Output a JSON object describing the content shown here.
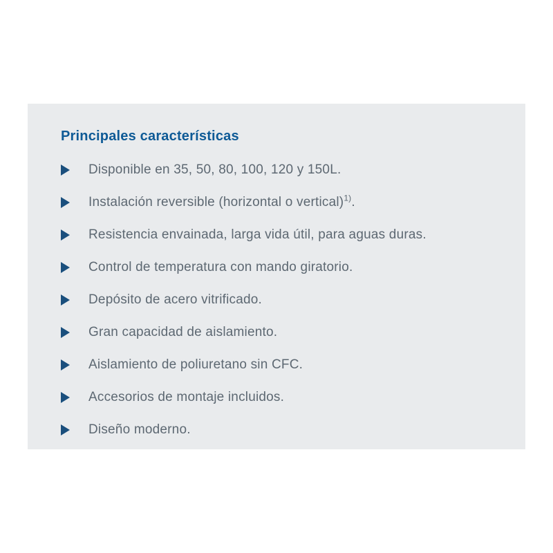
{
  "panel": {
    "title": "Principales características",
    "colors": {
      "panel_background": "#e9ebed",
      "title_blue": "#0e5a96",
      "bullet_blue": "#1a4f7d",
      "body_text_gray": "#5d6872",
      "page_background": "#ffffff"
    },
    "bullet_icon": "triangle-right-icon",
    "features": {
      "items": [
        {
          "text": "Disponible en 35, 50, 80, 100, 120 y 150L.",
          "sup": "",
          "suffix": ""
        },
        {
          "text": "Instalación reversible (horizontal o vertical)",
          "sup": "1)",
          "suffix": "."
        },
        {
          "text": "Resistencia envainada, larga vida útil, para aguas duras.",
          "sup": "",
          "suffix": ""
        },
        {
          "text": "Control de temperatura con mando giratorio.",
          "sup": "",
          "suffix": ""
        },
        {
          "text": "Depósito de acero vitrificado.",
          "sup": "",
          "suffix": ""
        },
        {
          "text": "Gran capacidad de aislamiento.",
          "sup": "",
          "suffix": ""
        },
        {
          "text": "Aislamiento de poliuretano sin CFC.",
          "sup": "",
          "suffix": ""
        },
        {
          "text": "Accesorios de montaje incluidos.",
          "sup": "",
          "suffix": ""
        },
        {
          "text": "Diseño moderno.",
          "sup": "",
          "suffix": ""
        }
      ]
    }
  }
}
